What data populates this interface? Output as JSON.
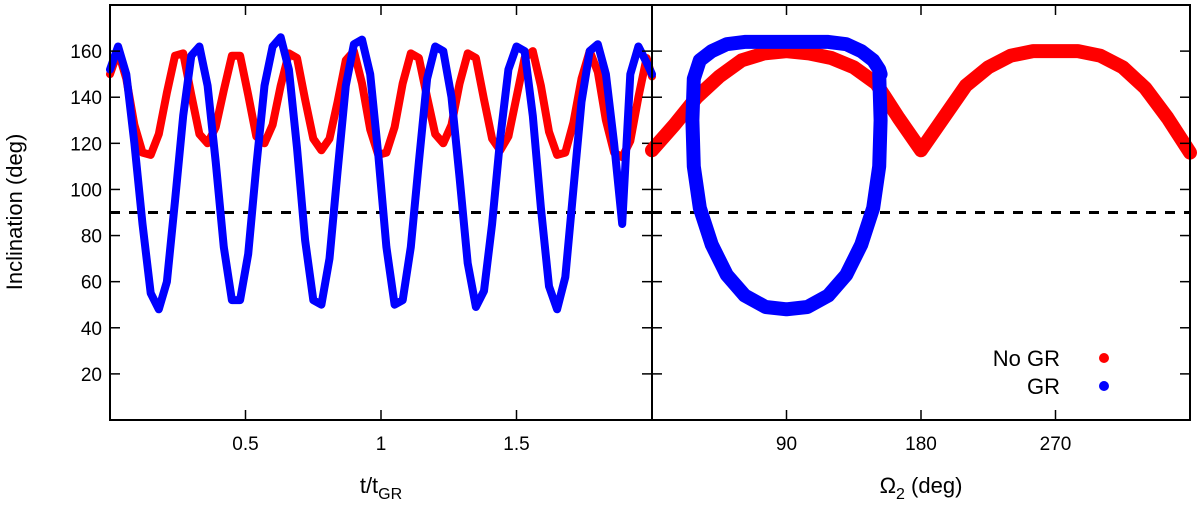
{
  "figure": {
    "ylabel": "Inclination (deg)"
  },
  "legend": {
    "position": "bottom-right",
    "entries": [
      {
        "label": "No GR",
        "color": "#ff0000"
      },
      {
        "label": "GR",
        "color": "#0000ff"
      }
    ]
  },
  "reference_line": {
    "y": 90,
    "style": "dashed",
    "color": "#000000"
  },
  "chart_data": [
    {
      "type": "line",
      "xlabel_main": "t/t",
      "xlabel_sub": "GR",
      "ylabel": "Inclination (deg)",
      "xlim": [
        0,
        2.0
      ],
      "ylim": [
        0,
        180
      ],
      "xticks": [
        0.5,
        1,
        1.5
      ],
      "xtick_labels": [
        "0.5",
        "1",
        "1.5"
      ],
      "yticks": [
        20,
        40,
        60,
        80,
        100,
        120,
        140,
        160
      ],
      "ytick_labels": [
        "20",
        "40",
        "60",
        "80",
        "100",
        "120",
        "140",
        "160"
      ],
      "series": [
        {
          "name": "No GR",
          "color": "#ff0000",
          "x": [
            0.0,
            0.03,
            0.06,
            0.09,
            0.12,
            0.15,
            0.18,
            0.21,
            0.24,
            0.27,
            0.3,
            0.33,
            0.36,
            0.39,
            0.42,
            0.45,
            0.48,
            0.51,
            0.54,
            0.57,
            0.6,
            0.63,
            0.66,
            0.69,
            0.72,
            0.75,
            0.78,
            0.81,
            0.84,
            0.87,
            0.9,
            0.93,
            0.96,
            0.99,
            1.02,
            1.05,
            1.08,
            1.11,
            1.14,
            1.17,
            1.2,
            1.23,
            1.26,
            1.29,
            1.32,
            1.35,
            1.38,
            1.41,
            1.44,
            1.47,
            1.5,
            1.53,
            1.56,
            1.59,
            1.62,
            1.65,
            1.68,
            1.71,
            1.74,
            1.77,
            1.8,
            1.83,
            1.86,
            1.89,
            1.92,
            1.95,
            1.98,
            2.0
          ],
          "y": [
            150,
            160,
            148,
            128,
            116,
            115,
            124,
            142,
            158,
            159,
            141,
            124,
            120,
            127,
            143,
            158,
            158,
            141,
            123,
            120,
            128,
            145,
            159,
            157,
            139,
            122,
            117,
            122,
            138,
            156,
            160,
            146,
            126,
            115,
            116,
            127,
            146,
            159,
            157,
            140,
            124,
            120,
            128,
            146,
            159,
            157,
            139,
            122,
            117,
            123,
            140,
            157,
            160,
            145,
            125,
            115,
            116,
            129,
            148,
            160,
            151,
            130,
            116,
            114,
            121,
            140,
            157,
            149
          ]
        },
        {
          "name": "GR",
          "color": "#0000ff",
          "x": [
            0.0,
            0.03,
            0.06,
            0.09,
            0.12,
            0.15,
            0.18,
            0.21,
            0.24,
            0.27,
            0.3,
            0.33,
            0.36,
            0.39,
            0.42,
            0.45,
            0.48,
            0.51,
            0.54,
            0.57,
            0.6,
            0.63,
            0.66,
            0.69,
            0.72,
            0.75,
            0.78,
            0.81,
            0.84,
            0.87,
            0.9,
            0.93,
            0.96,
            0.99,
            1.02,
            1.05,
            1.08,
            1.11,
            1.14,
            1.17,
            1.2,
            1.23,
            1.26,
            1.29,
            1.32,
            1.35,
            1.38,
            1.41,
            1.44,
            1.47,
            1.5,
            1.53,
            1.56,
            1.59,
            1.62,
            1.65,
            1.68,
            1.71,
            1.74,
            1.77,
            1.8,
            1.83,
            1.86,
            1.89,
            1.92,
            1.95,
            1.98,
            2.0
          ],
          "y": [
            152,
            162,
            150,
            120,
            85,
            55,
            48,
            60,
            95,
            132,
            158,
            162,
            145,
            112,
            75,
            52,
            52,
            72,
            110,
            145,
            162,
            166,
            152,
            118,
            78,
            52,
            50,
            70,
            108,
            145,
            163,
            165,
            150,
            115,
            75,
            50,
            52,
            75,
            112,
            148,
            162,
            160,
            140,
            105,
            68,
            49,
            56,
            85,
            122,
            152,
            162,
            160,
            132,
            92,
            58,
            48,
            62,
            100,
            138,
            160,
            163,
            150,
            120,
            85,
            150,
            162,
            155,
            150
          ]
        }
      ]
    },
    {
      "type": "scatter",
      "xlabel_main": "Ω",
      "xlabel_sub": "2",
      "xlabel_unit": " (deg)",
      "xlim": [
        0,
        360
      ],
      "ylim": [
        0,
        180
      ],
      "xticks": [
        90,
        180,
        270
      ],
      "xtick_labels": [
        "90",
        "180",
        "270"
      ],
      "series": [
        {
          "name": "No GR",
          "color": "#ff0000",
          "x": [
            0,
            15,
            30,
            45,
            60,
            75,
            90,
            105,
            120,
            135,
            150,
            165,
            180,
            195,
            210,
            225,
            240,
            255,
            270,
            285,
            300,
            315,
            330,
            345,
            360
          ],
          "y": [
            117,
            128,
            140,
            149,
            156,
            159,
            160,
            159,
            157,
            153,
            146,
            131,
            117,
            131,
            145,
            153,
            158,
            160,
            160,
            160,
            158,
            153,
            144,
            131,
            116
          ]
        },
        {
          "name": "GR",
          "color": "#0000ff",
          "x": [
            152,
            153,
            152,
            148,
            140,
            130,
            118,
            104,
            90,
            76,
            62,
            50,
            40,
            32,
            28,
            27,
            28,
            32,
            40,
            50,
            62,
            76,
            90,
            104,
            118,
            130,
            140,
            148,
            152,
            153,
            152
          ],
          "y": [
            150,
            130,
            110,
            92,
            76,
            63,
            54,
            49,
            48,
            49,
            54,
            63,
            76,
            92,
            110,
            130,
            148,
            156,
            160,
            163,
            164,
            164,
            164,
            164,
            164,
            163,
            160,
            156,
            152,
            150,
            150
          ]
        }
      ]
    }
  ]
}
